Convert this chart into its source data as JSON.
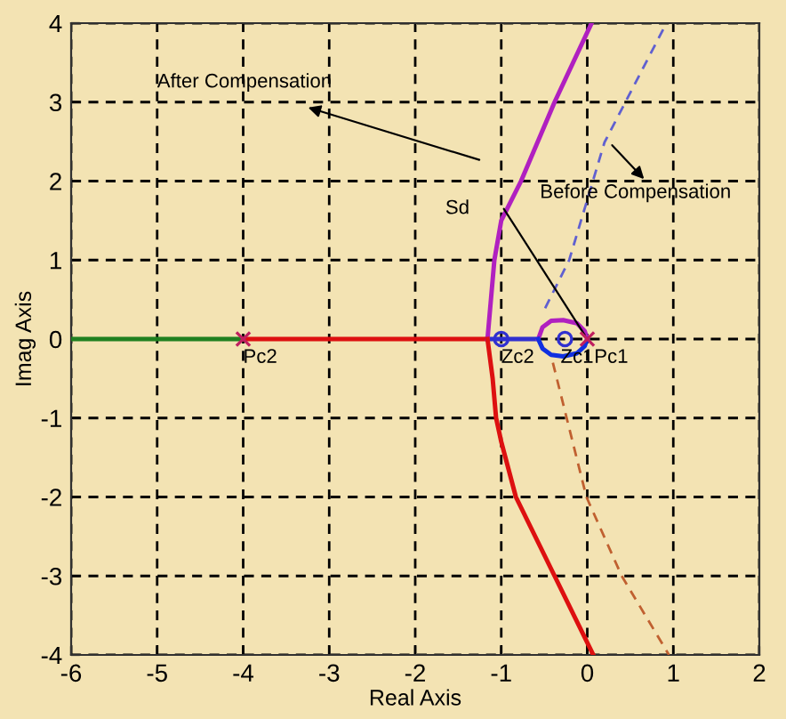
{
  "chart_data": {
    "type": "line",
    "xlabel": "Real Axis",
    "ylabel": "Imag Axis",
    "xlim": [
      -6,
      2
    ],
    "ylim": [
      -4,
      4
    ],
    "xticks": [
      -6,
      -5,
      -4,
      -3,
      -2,
      -1,
      0,
      1,
      2
    ],
    "yticks": [
      -4,
      -3,
      -2,
      -1,
      0,
      1,
      2,
      3,
      4
    ],
    "grid": true,
    "series": [
      {
        "color": "#208020",
        "x": [
          -6,
          -4
        ],
        "values": [
          0,
          0
        ],
        "line_style": "solid"
      },
      {
        "color": "#dd1010",
        "x": [
          -4,
          -1.16
        ],
        "values": [
          0,
          0
        ],
        "line_style": "solid"
      },
      {
        "color": "#3030d0",
        "x": [
          -1.16,
          -0.57
        ],
        "values": [
          0,
          0
        ],
        "line_style": "solid"
      },
      {
        "color": "#b020c0",
        "x": [
          -1.16,
          -1.12,
          -1.08,
          -1.0,
          -0.77,
          -0.38,
          0.05
        ],
        "values": [
          0,
          0.5,
          1,
          1.5,
          2,
          3,
          4
        ],
        "line_style": "solid"
      },
      {
        "color": "#dd1010",
        "x": [
          -1.16,
          -1.1,
          -1.06,
          -1.0,
          -0.83,
          -0.38,
          0.07
        ],
        "values": [
          0,
          -0.5,
          -1,
          -1.3,
          -2,
          -3,
          -4
        ],
        "line_style": "solid"
      },
      {
        "color": "#b020c0",
        "x": [
          -0.57,
          -0.52,
          -0.42,
          -0.28,
          -0.12,
          -0.03,
          0
        ],
        "values": [
          0,
          0.15,
          0.23,
          0.24,
          0.2,
          0.1,
          0
        ],
        "line_style": "solid"
      },
      {
        "color": "#1030e0",
        "x": [
          -0.57,
          -0.52,
          -0.42,
          -0.28,
          -0.12,
          -0.03,
          0
        ],
        "values": [
          0,
          -0.12,
          -0.2,
          -0.22,
          -0.18,
          -0.09,
          0
        ],
        "line_style": "solid"
      },
      {
        "color": "#6060d0",
        "x": [
          -0.49,
          -0.21,
          0.2,
          0.92
        ],
        "values": [
          0.39,
          1,
          2.49,
          4
        ],
        "line_style": "dashed"
      },
      {
        "color": "#c06030",
        "x": [
          -0.4,
          -0.01,
          0.4,
          0.95
        ],
        "values": [
          -0.3,
          -2,
          -3,
          -4
        ],
        "line_style": "dashed"
      },
      {
        "type": "scatter",
        "color": "#c02060",
        "x": [
          -4,
          0
        ],
        "values": [
          0,
          0
        ],
        "marker": "cross"
      },
      {
        "type": "scatter",
        "color": "#3030d0",
        "x": [
          -1,
          -0.26
        ],
        "values": [
          0,
          0
        ],
        "marker": "circle"
      }
    ],
    "annotations": [
      {
        "text": "Pc2",
        "x": -4,
        "y": 0
      },
      {
        "text": "Zc2",
        "x": -1,
        "y": 0
      },
      {
        "text": "Zc1",
        "x": -0.26,
        "y": 0
      },
      {
        "text": "Pc1",
        "x": 0,
        "y": 0
      },
      "After Compensation",
      "Before Compensation",
      {
        "text": "Sd",
        "x": -1.0,
        "y": 1.7
      }
    ]
  }
}
